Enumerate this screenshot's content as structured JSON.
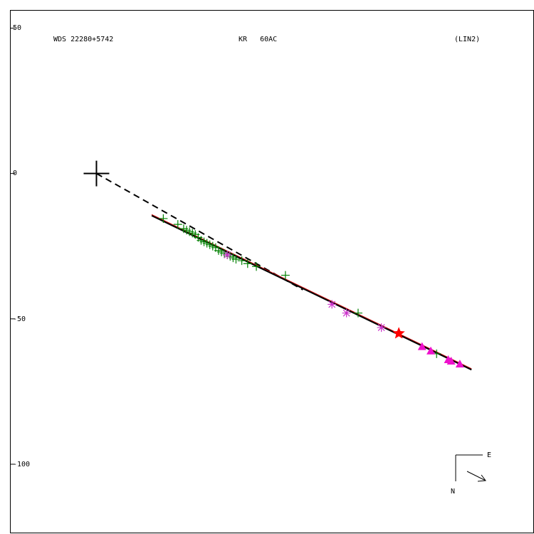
{
  "chart_data": {
    "type": "scatter",
    "header": {
      "left": "WDS 22280+5742",
      "center": "KR   60AC",
      "right": "(LIN2)"
    },
    "ytick_labels": [
      "50",
      "0",
      "-50",
      "-100"
    ],
    "yticks": [
      50,
      0,
      -50,
      -100
    ],
    "ylim": [
      -124,
      56
    ],
    "xlim": [
      -29.5,
      150.5
    ],
    "compass": {
      "east": "E",
      "north": "N"
    },
    "primary": [
      0,
      0
    ],
    "fit_line": {
      "from": [
        19,
        -14.5
      ],
      "to": [
        129,
        -67.5
      ]
    },
    "dashed_line": {
      "from": [
        0,
        0
      ],
      "to": [
        71,
        -40
      ]
    },
    "series": [
      {
        "marker": "plus",
        "color": "#008000",
        "points": [
          [
            23,
            -15.5
          ],
          [
            28,
            -17.5
          ],
          [
            30,
            -19
          ],
          [
            31,
            -19.5
          ],
          [
            32,
            -20
          ],
          [
            33,
            -20.5
          ],
          [
            34,
            -21
          ],
          [
            35,
            -22
          ],
          [
            36,
            -23
          ],
          [
            37,
            -23.5
          ],
          [
            38,
            -24
          ],
          [
            39,
            -24.5
          ],
          [
            40,
            -25
          ],
          [
            41,
            -25.5
          ],
          [
            42,
            -26.5
          ],
          [
            43,
            -27
          ],
          [
            44,
            -27.5
          ],
          [
            45,
            -28
          ],
          [
            46,
            -28.5
          ],
          [
            47,
            -29
          ],
          [
            48,
            -29.5
          ],
          [
            50,
            -30
          ],
          [
            52,
            -31
          ],
          [
            55,
            -32
          ],
          [
            65,
            -35
          ],
          [
            90,
            -48
          ],
          [
            117,
            -62
          ]
        ]
      },
      {
        "marker": "asterisk",
        "color": "#cc33cc",
        "points": [
          [
            45,
            -28
          ],
          [
            81,
            -45
          ],
          [
            86,
            -48
          ],
          [
            98,
            -53
          ]
        ]
      },
      {
        "marker": "star",
        "color": "#ff0000",
        "points": [
          [
            104,
            -55
          ]
        ]
      },
      {
        "marker": "triangle",
        "color": "#ee11cc",
        "points": [
          [
            112,
            -59.5
          ],
          [
            115,
            -61
          ],
          [
            121,
            -64
          ],
          [
            122,
            -64.5
          ],
          [
            125,
            -65.5
          ]
        ]
      }
    ]
  }
}
